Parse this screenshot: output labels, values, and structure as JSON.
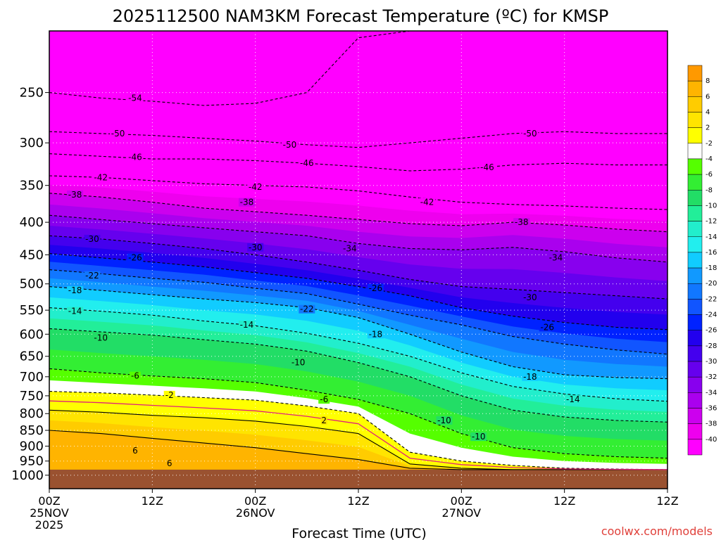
{
  "title": "2025112500 NAM3KM Forecast Temperature (ºC) for KMSP",
  "credit": "coolwx.com/models",
  "colors": {
    "credit": "#e0403a",
    "ground": "#9a5230",
    "zero_contour": "#e0207a"
  },
  "chart_data": {
    "type": "heatmap",
    "title": "2025112500 NAM3KM Forecast Temperature (ºC) for KMSP",
    "xlabel": "Forecast Time (UTC)",
    "ylabel": "",
    "x_axis": {
      "range_hours": [
        0,
        36
      ],
      "ticks": [
        {
          "hour": 0,
          "label": "00Z",
          "date": "25NOV",
          "year": "2025"
        },
        {
          "hour": 6,
          "label": "12Z",
          "date": "",
          "year": ""
        },
        {
          "hour": 12,
          "label": "00Z",
          "date": "26NOV",
          "year": ""
        },
        {
          "hour": 18,
          "label": "12Z",
          "date": "",
          "year": ""
        },
        {
          "hour": 24,
          "label": "00Z",
          "date": "27NOV",
          "year": ""
        },
        {
          "hour": 30,
          "label": "12Z",
          "date": "",
          "year": ""
        }
      ]
    },
    "y_axis": {
      "units": "hPa",
      "scale": "log",
      "range": [
        200,
        1050
      ],
      "ticks": [
        250,
        300,
        350,
        400,
        450,
        500,
        550,
        600,
        650,
        700,
        750,
        800,
        850,
        900,
        950,
        1000
      ],
      "grid": true
    },
    "colorbar": {
      "levels": [
        8,
        6,
        4,
        2,
        -2,
        -4,
        -6,
        -8,
        -10,
        -12,
        -14,
        -16,
        -18,
        -20,
        -22,
        -24,
        -26,
        -28,
        -30,
        -32,
        -34,
        -36,
        -38,
        -40
      ],
      "colors": [
        "#ff9900",
        "#ffb400",
        "#ffcc00",
        "#ffe400",
        "#ffff00",
        "#ffffff",
        "#55ff00",
        "#33ee33",
        "#22dd66",
        "#22ee99",
        "#22eecc",
        "#22eeee",
        "#11ccff",
        "#1199ff",
        "#1177ff",
        "#1155ff",
        "#0022ff",
        "#2200ee",
        "#4400ee",
        "#6600ee",
        "#8800ee",
        "#aa00ee",
        "#cc00ee",
        "#ee00ee",
        "#ff00ff"
      ]
    },
    "ground_level_hPa": 980,
    "isotherm_profiles": [
      {
        "temp": -54,
        "p": [
          250,
          255,
          258,
          262,
          260,
          250,
          205,
          200,
          200,
          200,
          200,
          200,
          200
        ]
      },
      {
        "temp": -50,
        "p": [
          288,
          290,
          292,
          295,
          298,
          302,
          305,
          300,
          295,
          290,
          288,
          290,
          290
        ]
      },
      {
        "temp": -46,
        "p": [
          312,
          315,
          318,
          318,
          320,
          323,
          327,
          332,
          330,
          325,
          323,
          325,
          325
        ]
      },
      {
        "temp": -42,
        "p": [
          338,
          340,
          344,
          348,
          350,
          352,
          357,
          365,
          372,
          375,
          377,
          380,
          382
        ]
      },
      {
        "temp": -38,
        "p": [
          360,
          365,
          372,
          380,
          385,
          390,
          396,
          402,
          405,
          400,
          404,
          410,
          414
        ]
      },
      {
        "temp": -34,
        "p": [
          390,
          396,
          402,
          408,
          414,
          420,
          432,
          440,
          442,
          438,
          445,
          455,
          462
        ]
      },
      {
        "temp": -30,
        "p": [
          420,
          425,
          432,
          440,
          450,
          462,
          476,
          492,
          505,
          510,
          516,
          522,
          528
        ]
      },
      {
        "temp": -26,
        "p": [
          448,
          455,
          462,
          470,
          480,
          490,
          505,
          522,
          545,
          562,
          575,
          585,
          590
        ]
      },
      {
        "temp": -22,
        "p": [
          475,
          482,
          490,
          497,
          508,
          518,
          538,
          560,
          580,
          605,
          622,
          635,
          645
        ]
      },
      {
        "temp": -18,
        "p": [
          505,
          512,
          520,
          528,
          535,
          545,
          565,
          600,
          640,
          675,
          695,
          702,
          705
        ]
      },
      {
        "temp": -14,
        "p": [
          545,
          552,
          560,
          572,
          582,
          598,
          620,
          650,
          690,
          725,
          745,
          758,
          765
        ]
      },
      {
        "temp": -10,
        "p": [
          588,
          595,
          602,
          612,
          622,
          638,
          665,
          700,
          750,
          790,
          810,
          820,
          825
        ]
      },
      {
        "temp": -6,
        "p": [
          680,
          690,
          698,
          705,
          715,
          735,
          760,
          800,
          860,
          905,
          925,
          935,
          940
        ]
      },
      {
        "temp": -2,
        "p": [
          738,
          742,
          748,
          755,
          762,
          778,
          800,
          920,
          950,
          965,
          975,
          978,
          980
        ]
      },
      {
        "temp": 2,
        "p": [
          790,
          796,
          805,
          812,
          822,
          838,
          860,
          960,
          975,
          980,
          980,
          980,
          980
        ]
      },
      {
        "temp": 6,
        "p": [
          850,
          860,
          875,
          890,
          905,
          925,
          945,
          975,
          980,
          980,
          980,
          980,
          980
        ]
      }
    ],
    "contour_labels": [
      {
        "text": "-54",
        "hour": 5,
        "p": 255
      },
      {
        "text": "-50",
        "hour": 4,
        "p": 290
      },
      {
        "text": "-50",
        "hour": 14,
        "p": 302
      },
      {
        "text": "-50",
        "hour": 28,
        "p": 290
      },
      {
        "text": "-46",
        "hour": 5,
        "p": 316
      },
      {
        "text": "-46",
        "hour": 15,
        "p": 323
      },
      {
        "text": "-46",
        "hour": 25.5,
        "p": 328
      },
      {
        "text": "-42",
        "hour": 3,
        "p": 340
      },
      {
        "text": "-42",
        "hour": 12,
        "p": 352
      },
      {
        "text": "-42",
        "hour": 22,
        "p": 372
      },
      {
        "text": "-38",
        "hour": 1.5,
        "p": 362
      },
      {
        "text": "-38",
        "hour": 11.5,
        "p": 372
      },
      {
        "text": "-38",
        "hour": 27.5,
        "p": 400
      },
      {
        "text": "-34",
        "hour": 17.5,
        "p": 440
      },
      {
        "text": "-34",
        "hour": 29.5,
        "p": 455
      },
      {
        "text": "-30",
        "hour": 2.5,
        "p": 425
      },
      {
        "text": "-30",
        "hour": 12,
        "p": 438
      },
      {
        "text": "-30",
        "hour": 28,
        "p": 525
      },
      {
        "text": "-26",
        "hour": 5,
        "p": 455
      },
      {
        "text": "-26",
        "hour": 19,
        "p": 508
      },
      {
        "text": "-26",
        "hour": 29,
        "p": 585
      },
      {
        "text": "-22",
        "hour": 2.5,
        "p": 485
      },
      {
        "text": "-22",
        "hour": 15,
        "p": 548
      },
      {
        "text": "-18",
        "hour": 1.5,
        "p": 512
      },
      {
        "text": "-18",
        "hour": 19,
        "p": 600
      },
      {
        "text": "-18",
        "hour": 28,
        "p": 700
      },
      {
        "text": "-14",
        "hour": 1.5,
        "p": 552
      },
      {
        "text": "-14",
        "hour": 11.5,
        "p": 580
      },
      {
        "text": "-14",
        "hour": 30.5,
        "p": 760
      },
      {
        "text": "-10",
        "hour": 3,
        "p": 608
      },
      {
        "text": "-10",
        "hour": 14.5,
        "p": 665
      },
      {
        "text": "-10",
        "hour": 23,
        "p": 820
      },
      {
        "text": "-10",
        "hour": 25,
        "p": 870
      },
      {
        "text": "-6",
        "hour": 5,
        "p": 698
      },
      {
        "text": "-6",
        "hour": 16,
        "p": 760
      },
      {
        "text": "-2",
        "hour": 7,
        "p": 748
      },
      {
        "text": "2",
        "hour": 16,
        "p": 820
      },
      {
        "text": "6",
        "hour": 5,
        "p": 915
      },
      {
        "text": "6",
        "hour": 7,
        "p": 958
      }
    ]
  }
}
